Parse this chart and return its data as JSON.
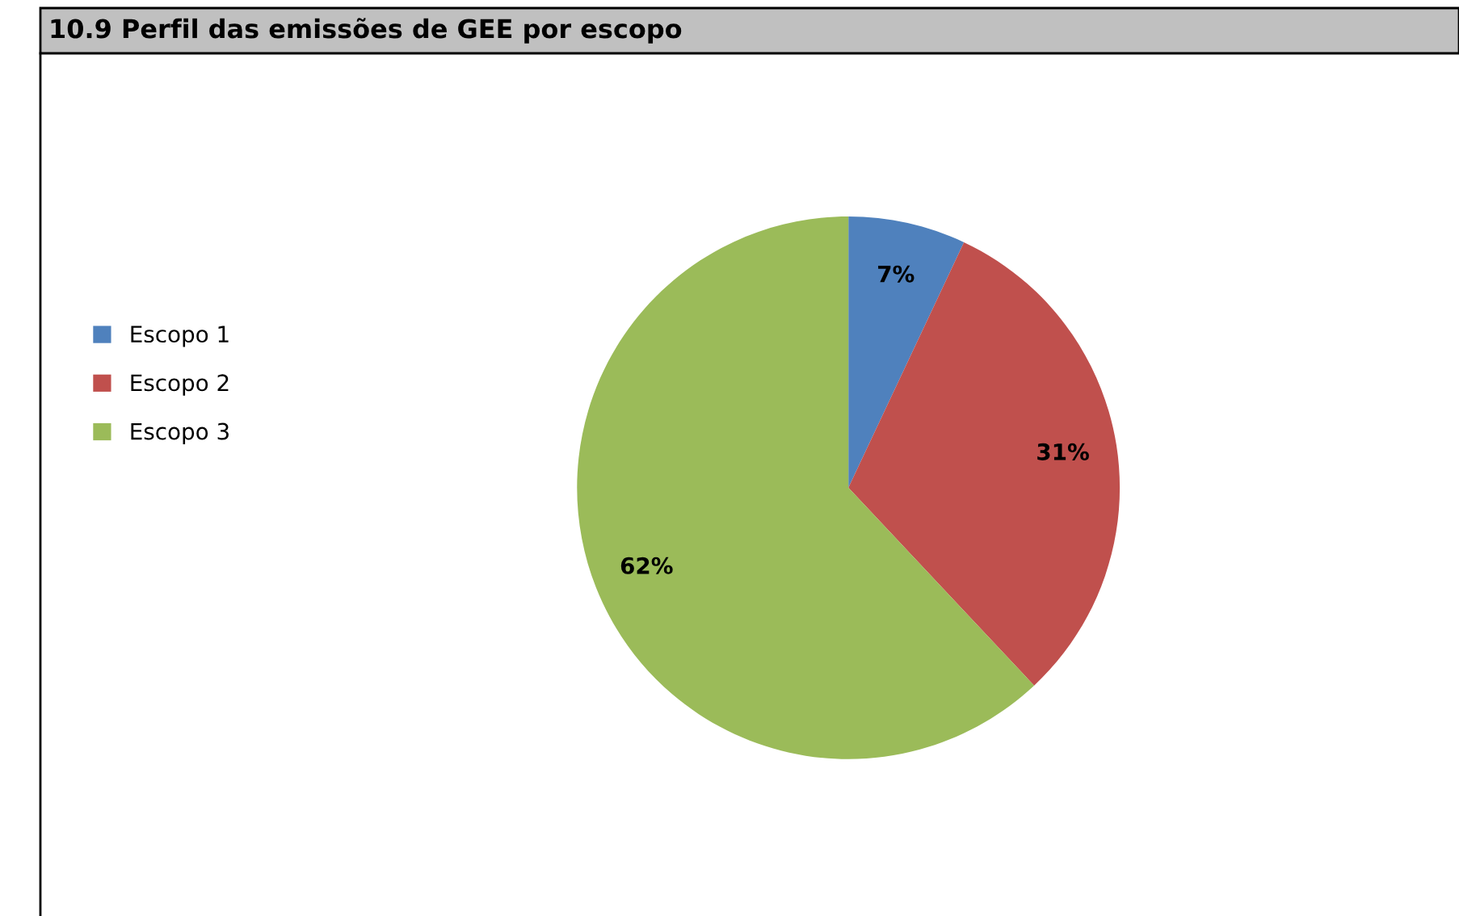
{
  "chart_data": {
    "type": "pie",
    "title": "10.9 Perfil das emissões de GEE por escopo",
    "categories": [
      "Escopo 1",
      "Escopo 2",
      "Escopo 3"
    ],
    "values": [
      7,
      31,
      62
    ],
    "value_labels": [
      "7%",
      "31%",
      "62%"
    ],
    "colors": [
      "#4f81bd",
      "#c0504d",
      "#9bbb59"
    ],
    "legend": "left"
  }
}
